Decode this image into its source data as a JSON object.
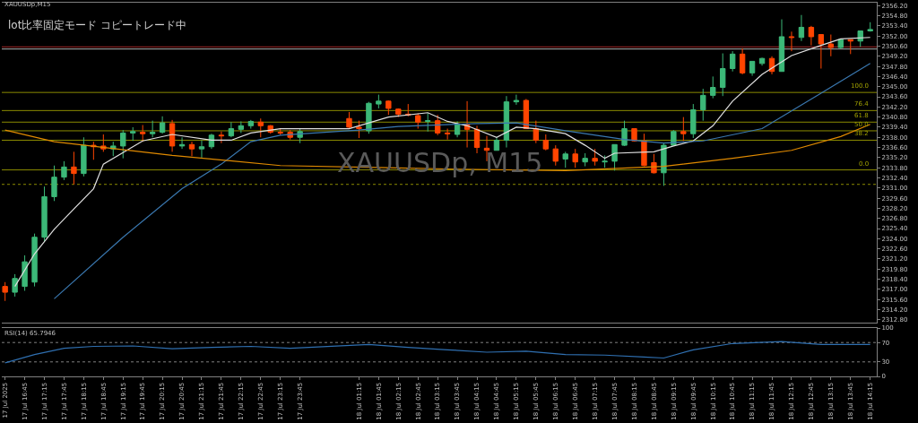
{
  "chart_data": [
    {
      "type": "candlestick",
      "title": "XAUUSDp,M15",
      "annotations": [
        "lot比率固定モード コピートレード中",
        "XAUUSDp, M15",
        {
          "text": "100.0",
          "x": "2025-07-18T14:15",
          "y": 2344.2
        },
        {
          "text": "76.4",
          "x": "2025-07-18T14:15",
          "y": 2341.7
        },
        {
          "text": "61.8",
          "x": "2025-07-18T14:15",
          "y": 2340.1
        },
        {
          "text": "50.0",
          "x": "2025-07-18T14:15",
          "y": 2338.9
        },
        {
          "text": "38.2",
          "x": "2025-07-18T14:15",
          "y": 2337.6
        },
        {
          "text": "0.0",
          "x": "2025-07-18T14:15",
          "y": 2333.5
        }
      ],
      "x": [
        "2025-07-17T16:15",
        "2025-07-17T16:30",
        "2025-07-17T16:45",
        "2025-07-17T17:00",
        "2025-07-17T17:15",
        "2025-07-17T17:30",
        "2025-07-17T17:45",
        "2025-07-17T18:00",
        "2025-07-17T18:15",
        "2025-07-17T18:30",
        "2025-07-17T18:45",
        "2025-07-17T19:00",
        "2025-07-17T19:15",
        "2025-07-17T19:30",
        "2025-07-17T19:45",
        "2025-07-17T20:00",
        "2025-07-17T20:15",
        "2025-07-17T20:30",
        "2025-07-17T20:45",
        "2025-07-17T21:00",
        "2025-07-17T21:15",
        "2025-07-17T21:30",
        "2025-07-17T21:45",
        "2025-07-17T22:00",
        "2025-07-17T22:15",
        "2025-07-17T22:30",
        "2025-07-17T22:45",
        "2025-07-17T23:00",
        "2025-07-17T23:15",
        "2025-07-17T23:30",
        "2025-07-17T23:45",
        "2025-07-18T01:00",
        "2025-07-18T01:15",
        "2025-07-18T01:30",
        "2025-07-18T01:45",
        "2025-07-18T02:00",
        "2025-07-18T02:15",
        "2025-07-18T02:30",
        "2025-07-18T02:45",
        "2025-07-18T03:00",
        "2025-07-18T03:15",
        "2025-07-18T03:30",
        "2025-07-18T03:45",
        "2025-07-18T04:00",
        "2025-07-18T04:15",
        "2025-07-18T04:30",
        "2025-07-18T04:45",
        "2025-07-18T05:00",
        "2025-07-18T05:15",
        "2025-07-18T05:30",
        "2025-07-18T05:45",
        "2025-07-18T06:00",
        "2025-07-18T06:15",
        "2025-07-18T06:30",
        "2025-07-18T06:45",
        "2025-07-18T07:00",
        "2025-07-18T07:15",
        "2025-07-18T07:30",
        "2025-07-18T07:45",
        "2025-07-18T08:00",
        "2025-07-18T08:15",
        "2025-07-18T08:30",
        "2025-07-18T08:45",
        "2025-07-18T09:00",
        "2025-07-18T09:15",
        "2025-07-18T09:30",
        "2025-07-18T09:45",
        "2025-07-18T10:00",
        "2025-07-18T10:15",
        "2025-07-18T10:30",
        "2025-07-18T10:45",
        "2025-07-18T11:00",
        "2025-07-18T11:15",
        "2025-07-18T11:30",
        "2025-07-18T11:45",
        "2025-07-18T12:00",
        "2025-07-18T12:15",
        "2025-07-18T12:30",
        "2025-07-18T12:45",
        "2025-07-18T13:00",
        "2025-07-18T13:15",
        "2025-07-18T13:30",
        "2025-07-18T13:45",
        "2025-07-18T14:00",
        "2025-07-18T14:15"
      ],
      "ohlc": [
        [
          2317.4,
          2318.0,
          2315.4,
          2316.6
        ],
        [
          2316.6,
          2319.1,
          2316.0,
          2318.5
        ],
        [
          2317.4,
          2321.7,
          2316.8,
          2320.8
        ],
        [
          2318.0,
          2324.7,
          2317.4,
          2324.2
        ],
        [
          2324.2,
          2331.2,
          2323.6,
          2329.8
        ],
        [
          2329.8,
          2334.1,
          2329.2,
          2332.5
        ],
        [
          2332.5,
          2334.7,
          2332.1,
          2333.9
        ],
        [
          2333.9,
          2336.0,
          2331.5,
          2333.0
        ],
        [
          2333.0,
          2338.0,
          2332.6,
          2336.9
        ],
        [
          2336.9,
          2337.4,
          2334.9,
          2336.7
        ],
        [
          2336.8,
          2338.4,
          2336.0,
          2336.4
        ],
        [
          2336.4,
          2337.4,
          2335.4,
          2336.8
        ],
        [
          2336.8,
          2339.0,
          2335.1,
          2338.6
        ],
        [
          2338.6,
          2339.4,
          2337.5,
          2338.8
        ],
        [
          2338.7,
          2339.7,
          2337.4,
          2338.5
        ],
        [
          2338.5,
          2340.3,
          2338.0,
          2338.7
        ],
        [
          2338.7,
          2340.9,
          2338.5,
          2340.0
        ],
        [
          2339.9,
          2340.4,
          2336.0,
          2336.8
        ],
        [
          2336.8,
          2338.0,
          2336.4,
          2337.0
        ],
        [
          2337.0,
          2337.4,
          2335.4,
          2336.4
        ],
        [
          2336.4,
          2337.6,
          2335.2,
          2336.7
        ],
        [
          2336.7,
          2338.5,
          2336.4,
          2338.3
        ],
        [
          2338.3,
          2338.8,
          2337.2,
          2338.2
        ],
        [
          2338.2,
          2340.1,
          2338.0,
          2339.2
        ],
        [
          2339.1,
          2340.2,
          2338.6,
          2339.6
        ],
        [
          2339.6,
          2340.4,
          2339.2,
          2340.2
        ],
        [
          2340.1,
          2340.6,
          2338.0,
          2339.6
        ],
        [
          2339.6,
          2339.7,
          2338.5,
          2338.7
        ],
        [
          2338.7,
          2339.2,
          2338.3,
          2338.6
        ],
        [
          2338.7,
          2339.0,
          2337.7,
          2338.0
        ],
        [
          2338.0,
          2339.2,
          2337.2,
          2338.8
        ],
        [
          2340.6,
          2341.5,
          2339.2,
          2339.4
        ],
        [
          2339.4,
          2340.3,
          2337.9,
          2339.2
        ],
        [
          2338.9,
          2342.9,
          2338.5,
          2342.7
        ],
        [
          2342.6,
          2343.9,
          2342.0,
          2343.0
        ],
        [
          2343.0,
          2343.1,
          2341.1,
          2342.0
        ],
        [
          2341.9,
          2342.0,
          2340.8,
          2341.2
        ],
        [
          2341.2,
          2342.6,
          2340.9,
          2341.1
        ],
        [
          2341.0,
          2341.3,
          2339.2,
          2340.1
        ],
        [
          2340.2,
          2341.3,
          2338.8,
          2340.3
        ],
        [
          2340.3,
          2341.1,
          2338.3,
          2338.6
        ],
        [
          2338.6,
          2339.2,
          2337.7,
          2338.5
        ],
        [
          2338.4,
          2340.2,
          2338.0,
          2339.8
        ],
        [
          2339.8,
          2343.0,
          2336.6,
          2339.1
        ],
        [
          2339.1,
          2339.6,
          2335.8,
          2336.6
        ],
        [
          2336.5,
          2338.2,
          2334.7,
          2336.2
        ],
        [
          2336.2,
          2338.0,
          2336.2,
          2337.6
        ],
        [
          2337.6,
          2343.7,
          2336.6,
          2342.9
        ],
        [
          2342.9,
          2343.9,
          2342.5,
          2343.1
        ],
        [
          2343.1,
          2343.3,
          2339.2,
          2339.2
        ],
        [
          2339.2,
          2340.3,
          2337.2,
          2337.6
        ],
        [
          2337.6,
          2338.4,
          2336.2,
          2336.4
        ],
        [
          2336.4,
          2336.9,
          2334.1,
          2334.7
        ],
        [
          2335.0,
          2336.0,
          2333.8,
          2335.7
        ],
        [
          2335.7,
          2336.4,
          2333.8,
          2334.6
        ],
        [
          2334.6,
          2335.8,
          2334.0,
          2335.1
        ],
        [
          2335.1,
          2336.4,
          2334.1,
          2334.7
        ],
        [
          2334.6,
          2335.5,
          2333.8,
          2334.7
        ],
        [
          2334.7,
          2337.0,
          2333.4,
          2337.0
        ],
        [
          2336.9,
          2340.3,
          2336.8,
          2339.2
        ],
        [
          2339.2,
          2339.2,
          2337.4,
          2337.5
        ],
        [
          2337.5,
          2338.5,
          2334.0,
          2334.1
        ],
        [
          2334.5,
          2335.7,
          2333.0,
          2333.1
        ],
        [
          2333.1,
          2337.2,
          2331.3,
          2336.9
        ],
        [
          2336.9,
          2339.0,
          2336.9,
          2338.8
        ],
        [
          2338.8,
          2340.8,
          2337.5,
          2338.5
        ],
        [
          2338.5,
          2342.6,
          2337.9,
          2341.8
        ],
        [
          2341.8,
          2344.7,
          2340.3,
          2343.8
        ],
        [
          2343.8,
          2346.4,
          2343.4,
          2344.9
        ],
        [
          2344.9,
          2349.6,
          2343.7,
          2347.5
        ],
        [
          2347.5,
          2349.9,
          2347.1,
          2349.5
        ],
        [
          2349.5,
          2350.3,
          2346.7,
          2346.9
        ],
        [
          2346.9,
          2348.5,
          2346.5,
          2348.5
        ],
        [
          2348.2,
          2349.0,
          2347.9,
          2348.9
        ],
        [
          2348.9,
          2349.2,
          2346.7,
          2347.1
        ],
        [
          2347.1,
          2354.3,
          2347.1,
          2351.9
        ],
        [
          2351.9,
          2352.6,
          2349.9,
          2351.8
        ],
        [
          2351.8,
          2354.9,
          2351.3,
          2353.2
        ],
        [
          2353.2,
          2353.4,
          2350.7,
          2351.9
        ],
        [
          2352.2,
          2352.2,
          2347.5,
          2350.9
        ],
        [
          2350.9,
          2352.2,
          2349.2,
          2350.4
        ],
        [
          2350.4,
          2351.6,
          2350.2,
          2351.5
        ],
        [
          2351.5,
          2351.5,
          2349.5,
          2351.3
        ],
        [
          2351.3,
          2352.7,
          2350.5,
          2352.7
        ],
        [
          2352.7,
          2353.9,
          2352.6,
          2352.9
        ]
      ],
      "colors": [
        "#ff4500",
        "#3cb878",
        "#3cb878",
        "#3cb878",
        "#3cb878",
        "#3cb878",
        "#3cb878",
        "#ff4500",
        "#3cb878",
        "#ff4500",
        "#ff4500",
        "#3cb878",
        "#3cb878",
        "#3cb878",
        "#ff4500",
        "#3cb878",
        "#3cb878",
        "#ff4500",
        "#3cb878",
        "#ff4500",
        "#3cb878",
        "#3cb878",
        "#ff4500",
        "#3cb878",
        "#3cb878",
        "#3cb878",
        "#ff4500",
        "#ff4500",
        "#ff4500",
        "#ff4500",
        "#3cb878",
        "#ff4500",
        "#ff4500",
        "#3cb878",
        "#3cb878",
        "#ff4500",
        "#ff4500",
        "#ff4500",
        "#ff4500",
        "#3cb878",
        "#ff4500",
        "#ff4500",
        "#3cb878",
        "#ff4500",
        "#ff4500",
        "#ff4500",
        "#3cb878",
        "#3cb878",
        "#3cb878",
        "#ff4500",
        "#ff4500",
        "#ff4500",
        "#ff4500",
        "#3cb878",
        "#ff4500",
        "#3cb878",
        "#ff4500",
        "#3cb878",
        "#3cb878",
        "#3cb878",
        "#ff4500",
        "#ff4500",
        "#ff4500",
        "#3cb878",
        "#3cb878",
        "#ff4500",
        "#3cb878",
        "#3cb878",
        "#3cb878",
        "#3cb878",
        "#3cb878",
        "#ff4500",
        "#3cb878",
        "#3cb878",
        "#ff4500",
        "#3cb878",
        "#ff4500",
        "#3cb878",
        "#ff4500",
        "#ff4500",
        "#ff4500",
        "#3cb878",
        "#ff4500",
        "#3cb878",
        "#3cb878"
      ],
      "series": [
        {
          "type": "line",
          "color": "#e0e0e0",
          "x": [
            "2025-07-17T16:30",
            "2025-07-17T17:00",
            "2025-07-17T17:30",
            "2025-07-17T18:00",
            "2025-07-17T18:30",
            "2025-07-17T18:45",
            "2025-07-17T19:45",
            "2025-07-17T20:30",
            "2025-07-17T21:30",
            "2025-07-17T22:00",
            "2025-07-17T22:30",
            "2025-07-17T23:15",
            "2025-07-18T01:00",
            "2025-07-18T02:00",
            "2025-07-18T03:00",
            "2025-07-18T03:30",
            "2025-07-18T04:00",
            "2025-07-18T04:45",
            "2025-07-18T05:15",
            "2025-07-18T05:45",
            "2025-07-18T06:30",
            "2025-07-18T07:00",
            "2025-07-18T07:30",
            "2025-07-18T07:45",
            "2025-07-18T08:45",
            "2025-07-18T09:15",
            "2025-07-18T09:45",
            "2025-07-18T10:15",
            "2025-07-18T10:45",
            "2025-07-18T11:30",
            "2025-07-18T12:15",
            "2025-07-18T13:00",
            "2025-07-18T13:30",
            "2025-07-18T14:15"
          ],
          "values": [
            2317.4,
            2321.9,
            2325.3,
            2328.1,
            2330.9,
            2334.3,
            2337.5,
            2338.4,
            2337.6,
            2337.6,
            2338.6,
            2339.2,
            2339.2,
            2340.8,
            2341.4,
            2340.2,
            2339.6,
            2338.0,
            2339.4,
            2339.2,
            2338.5,
            2336.9,
            2335.1,
            2335.8,
            2336.0,
            2336.8,
            2337.5,
            2339.6,
            2343.0,
            2346.7,
            2349.3,
            2350.7,
            2351.6,
            2351.8
          ]
        },
        {
          "type": "line",
          "color": "#3a78b0",
          "x": [
            "2025-07-17T17:30",
            "2025-07-17T19:15",
            "2025-07-17T20:45",
            "2025-07-17T21:45",
            "2025-07-17T22:30",
            "2025-07-17T23:15",
            "2025-07-18T01:15",
            "2025-07-18T02:15",
            "2025-07-18T04:15",
            "2025-07-18T05:15",
            "2025-07-18T06:30",
            "2025-07-18T08:00",
            "2025-07-18T09:00",
            "2025-07-18T10:00",
            "2025-07-18T11:30",
            "2025-07-18T13:00",
            "2025-07-18T14:15"
          ],
          "values": [
            2315.7,
            2324.2,
            2330.9,
            2334.3,
            2337.4,
            2338.3,
            2339.0,
            2339.5,
            2339.9,
            2340.0,
            2338.9,
            2337.7,
            2337.2,
            2337.5,
            2339.2,
            2344.1,
            2348.2
          ]
        },
        {
          "type": "line",
          "color": "#e08a00",
          "x": [
            "2025-07-17T16:15",
            "2025-07-17T17:30",
            "2025-07-17T20:30",
            "2025-07-17T23:15",
            "2025-07-18T02:00",
            "2025-07-18T03:45",
            "2025-07-18T06:30",
            "2025-07-18T09:00",
            "2025-07-18T10:45",
            "2025-07-18T12:15",
            "2025-07-18T13:30",
            "2025-07-18T14:15"
          ],
          "values": [
            2339.0,
            2337.4,
            2335.5,
            2334.1,
            2333.8,
            2333.6,
            2333.4,
            2334.0,
            2335.1,
            2336.2,
            2338.1,
            2339.8
          ]
        }
      ],
      "ref_lines": [
        {
          "axis": "y",
          "value": 2350.5,
          "color": "#a52a2a"
        },
        {
          "axis": "y",
          "value": 2350.2,
          "color": "#b0b0b0"
        },
        {
          "axis": "y",
          "value": 2344.2,
          "color": "#8b8b00"
        },
        {
          "axis": "y",
          "value": 2341.7,
          "color": "#8b8b00"
        },
        {
          "axis": "y",
          "value": 2340.1,
          "color": "#8b8b00"
        },
        {
          "axis": "y",
          "value": 2338.9,
          "color": "#8b8b00"
        },
        {
          "axis": "y",
          "value": 2337.6,
          "color": "#8b8b00"
        },
        {
          "axis": "y",
          "value": 2333.5,
          "color": "#8b8b00"
        },
        {
          "axis": "y",
          "value": 2331.5,
          "color": "#8b8b00",
          "line_style": "dotted"
        }
      ],
      "xlim": [
        "2025-07-17T16:10",
        "2025-07-18T14:25"
      ],
      "ylim": [
        2312.4,
        2356.6
      ],
      "yticks": [
        {
          "value": 2312.8,
          "label": "2312.80"
        },
        {
          "value": 2314.2,
          "label": "2314.20"
        },
        {
          "value": 2315.6,
          "label": "2315.60"
        },
        {
          "value": 2317.0,
          "label": "2317.00"
        },
        {
          "value": 2318.4,
          "label": "2318.40"
        },
        {
          "value": 2319.8,
          "label": "2319.80"
        },
        {
          "value": 2321.2,
          "label": "2321.20"
        },
        {
          "value": 2322.6,
          "label": "2322.60"
        },
        {
          "value": 2324.0,
          "label": "2324.00"
        },
        {
          "value": 2325.4,
          "label": "2325.40"
        },
        {
          "value": 2326.8,
          "label": "2326.80"
        },
        {
          "value": 2328.2,
          "label": "2328.20"
        },
        {
          "value": 2329.6,
          "label": "2329.60"
        },
        {
          "value": 2331.0,
          "label": "2331.00"
        },
        {
          "value": 2332.4,
          "label": "2332.40"
        },
        {
          "value": 2333.8,
          "label": "2333.80"
        },
        {
          "value": 2335.2,
          "label": "2335.20"
        },
        {
          "value": 2336.6,
          "label": "2336.60"
        },
        {
          "value": 2338.0,
          "label": "2338.00"
        },
        {
          "value": 2339.4,
          "label": "2339.40"
        },
        {
          "value": 2340.8,
          "label": "2340.80"
        },
        {
          "value": 2342.2,
          "label": "2342.20"
        },
        {
          "value": 2343.6,
          "label": "2343.60"
        },
        {
          "value": 2345.0,
          "label": "2345.00"
        },
        {
          "value": 2346.4,
          "label": "2346.40"
        },
        {
          "value": 2347.8,
          "label": "2347.80"
        },
        {
          "value": 2349.2,
          "label": "2349.20"
        },
        {
          "value": 2350.6,
          "label": "2350.60"
        },
        {
          "value": 2352.0,
          "label": "2352.00"
        },
        {
          "value": 2353.4,
          "label": "2353.40"
        },
        {
          "value": 2354.8,
          "label": "2354.80"
        },
        {
          "value": 2356.2,
          "label": "2356.20"
        }
      ],
      "tick_labels": "y"
    },
    {
      "type": "line",
      "title": "RSI(14) 65.7946",
      "series": [
        {
          "color": "#2f6fb0",
          "x": [
            "2025-07-17T16:15",
            "2025-07-17T17:00",
            "2025-07-17T17:45",
            "2025-07-17T18:30",
            "2025-07-17T19:30",
            "2025-07-17T20:30",
            "2025-07-17T21:30",
            "2025-07-17T22:30",
            "2025-07-17T23:30",
            "2025-07-18T01:30",
            "2025-07-18T02:30",
            "2025-07-18T03:30",
            "2025-07-18T04:30",
            "2025-07-18T05:30",
            "2025-07-18T06:30",
            "2025-07-18T07:30",
            "2025-07-18T08:30",
            "2025-07-18T09:00",
            "2025-07-18T09:45",
            "2025-07-18T10:45",
            "2025-07-18T12:00",
            "2025-07-18T13:00",
            "2025-07-18T14:15"
          ],
          "values": [
            28,
            45,
            58,
            62,
            63,
            57,
            60,
            62,
            58,
            66,
            60,
            55,
            50,
            52,
            45,
            44,
            40,
            38,
            55,
            68,
            72,
            66,
            66
          ]
        }
      ],
      "ref_lines": [
        {
          "axis": "y",
          "value": 70,
          "color": "#808080",
          "line_style": "dotted"
        },
        {
          "axis": "y",
          "value": 30,
          "color": "#808080",
          "line_style": "dotted"
        }
      ],
      "xlim": [
        "2025-07-17T16:10",
        "2025-07-18T14:25"
      ],
      "ylim": [
        0,
        100
      ],
      "yticks": [
        0,
        30,
        70,
        100
      ],
      "xticks": [
        {
          "value": "2025-07-17T16:15",
          "label": "17 Jul 2025"
        },
        {
          "value": "2025-07-17T16:45",
          "label": "17 Jul 16:45"
        },
        {
          "value": "2025-07-17T17:15",
          "label": "17 Jul 17:15"
        },
        {
          "value": "2025-07-17T17:45",
          "label": "17 Jul 17:45"
        },
        {
          "value": "2025-07-17T18:15",
          "label": "17 Jul 18:15"
        },
        {
          "value": "2025-07-17T18:45",
          "label": "17 Jul 18:45"
        },
        {
          "value": "2025-07-17T19:15",
          "label": "17 Jul 19:15"
        },
        {
          "value": "2025-07-17T19:45",
          "label": "17 Jul 19:45"
        },
        {
          "value": "2025-07-17T20:15",
          "label": "17 Jul 20:15"
        },
        {
          "value": "2025-07-17T20:45",
          "label": "17 Jul 20:45"
        },
        {
          "value": "2025-07-17T21:15",
          "label": "17 Jul 21:15"
        },
        {
          "value": "2025-07-17T21:45",
          "label": "17 Jul 21:45"
        },
        {
          "value": "2025-07-17T22:15",
          "label": "17 Jul 22:15"
        },
        {
          "value": "2025-07-17T22:45",
          "label": "17 Jul 22:45"
        },
        {
          "value": "2025-07-17T23:15",
          "label": "17 Jul 23:15"
        },
        {
          "value": "2025-07-17T23:45",
          "label": "17 Jul 23:45"
        },
        {
          "value": "2025-07-18T01:15",
          "label": "18 Jul 01:15"
        },
        {
          "value": "2025-07-18T01:45",
          "label": "18 Jul 01:45"
        },
        {
          "value": "2025-07-18T02:15",
          "label": "18 Jul 02:15"
        },
        {
          "value": "2025-07-18T02:45",
          "label": "18 Jul 02:45"
        },
        {
          "value": "2025-07-18T03:15",
          "label": "18 Jul 03:15"
        },
        {
          "value": "2025-07-18T03:45",
          "label": "18 Jul 03:45"
        },
        {
          "value": "2025-07-18T04:15",
          "label": "18 Jul 04:15"
        },
        {
          "value": "2025-07-18T04:45",
          "label": "18 Jul 04:45"
        },
        {
          "value": "2025-07-18T05:15",
          "label": "18 Jul 05:15"
        },
        {
          "value": "2025-07-18T05:45",
          "label": "18 Jul 05:45"
        },
        {
          "value": "2025-07-18T06:15",
          "label": "18 Jul 06:15"
        },
        {
          "value": "2025-07-18T06:45",
          "label": "18 Jul 06:45"
        },
        {
          "value": "2025-07-18T07:15",
          "label": "18 Jul 07:15"
        },
        {
          "value": "2025-07-18T07:45",
          "label": "18 Jul 07:45"
        },
        {
          "value": "2025-07-18T08:15",
          "label": "18 Jul 08:15"
        },
        {
          "value": "2025-07-18T08:45",
          "label": "18 Jul 08:45"
        },
        {
          "value": "2025-07-18T09:15",
          "label": "18 Jul 09:15"
        },
        {
          "value": "2025-07-18T09:45",
          "label": "18 Jul 09:45"
        },
        {
          "value": "2025-07-18T10:15",
          "label": "18 Jul 10:15"
        },
        {
          "value": "2025-07-18T10:45",
          "label": "18 Jul 10:45"
        },
        {
          "value": "2025-07-18T11:15",
          "label": "18 Jul 11:15"
        },
        {
          "value": "2025-07-18T11:45",
          "label": "18 Jul 11:45"
        },
        {
          "value": "2025-07-18T12:15",
          "label": "18 Jul 12:15"
        },
        {
          "value": "2025-07-18T12:45",
          "label": "18 Jul 12:45"
        },
        {
          "value": "2025-07-18T13:15",
          "label": "18 Jul 13:15"
        },
        {
          "value": "2025-07-18T13:45",
          "label": "18 Jul 13:45"
        },
        {
          "value": "2025-07-18T14:15",
          "label": "18 Jul 14:15"
        }
      ]
    }
  ]
}
